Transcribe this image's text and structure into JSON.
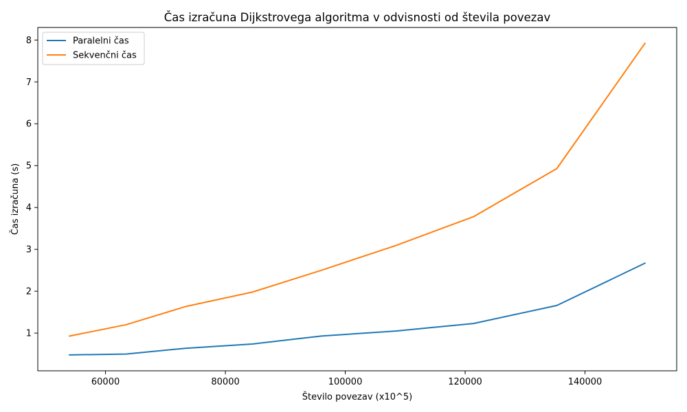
{
  "chart_data": {
    "type": "line",
    "title": "Čas izračuna Dijkstrovega algoritma v odvisnosti od števila povezav",
    "xlabel": "Število povezav (x10^5)",
    "ylabel": "Čas izračuna (s)",
    "xlim": [
      48700,
      155300
    ],
    "ylim": [
      0.1,
      8.3
    ],
    "xticks": [
      60000,
      80000,
      100000,
      120000,
      140000
    ],
    "yticks": [
      1,
      2,
      3,
      4,
      5,
      6,
      7,
      8
    ],
    "grid": false,
    "legend_position": "top-left",
    "series": [
      {
        "name": "Paralelni čas",
        "color": "#1f77b4",
        "x": [
          54000,
          63400,
          73500,
          84500,
          96000,
          108400,
          121400,
          135300,
          150000
        ],
        "y": [
          0.48,
          0.5,
          0.64,
          0.74,
          0.93,
          1.05,
          1.23,
          1.66,
          2.67
        ]
      },
      {
        "name": "Sekvenčni čas",
        "color": "#ff7f0e",
        "x": [
          54000,
          63400,
          73500,
          84500,
          96000,
          108400,
          121400,
          135300,
          150000
        ],
        "y": [
          0.93,
          1.2,
          1.64,
          1.98,
          2.5,
          3.09,
          3.78,
          4.93,
          7.92
        ]
      }
    ]
  }
}
